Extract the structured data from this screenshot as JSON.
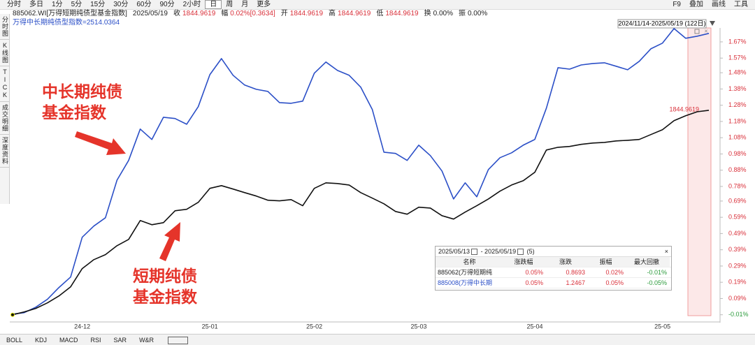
{
  "toolbar": {
    "periods": [
      "分时",
      "多日",
      "1分",
      "5分",
      "15分",
      "30分",
      "60分",
      "90分",
      "2小时",
      "日",
      "周",
      "月",
      "更多"
    ],
    "tools": [
      "F9",
      "叠加",
      "画线",
      "工具"
    ]
  },
  "sidebar": [
    "分时图",
    "K线图",
    "TICK",
    "成交明细",
    "深度资料"
  ],
  "info_bar": [
    {
      "text": "885062.WI[万得短期纯债型基金指数]"
    },
    {
      "text": "2025/05/19"
    },
    {
      "label": "收",
      "value": "1844.9619",
      "color": "#d9303a"
    },
    {
      "label": "幅",
      "value": "0.02%[0.3634]",
      "color": "#d9303a"
    },
    {
      "label": "开",
      "value": "1844.9619",
      "color": "#d9303a"
    },
    {
      "label": "高",
      "value": "1844.9619",
      "color": "#d9303a"
    },
    {
      "label": "低",
      "value": "1844.9619",
      "color": "#d9303a"
    },
    {
      "label": "换",
      "value": "0.00%",
      "color": "#222222"
    },
    {
      "label": "振",
      "value": "0.00%",
      "color": "#222222"
    }
  ],
  "chart_data": {
    "type": "line",
    "subtitle": "万得中长期纯债型指数=2514.0364",
    "range_label": "2024/11/14-2025/05/19 (122日)",
    "last_price_label": "1844.9619",
    "annotations": [
      [
        "中长期纯债",
        "基金指数"
      ],
      [
        "短期纯债",
        "基金指数"
      ]
    ],
    "categories": [
      null,
      null,
      null,
      null,
      null,
      null,
      "24-12",
      null,
      null,
      null,
      null,
      null,
      null,
      null,
      null,
      null,
      null,
      "25-01",
      null,
      null,
      null,
      null,
      null,
      null,
      null,
      null,
      "25-02",
      null,
      null,
      null,
      null,
      null,
      null,
      null,
      null,
      "25-03",
      null,
      null,
      null,
      null,
      null,
      null,
      null,
      null,
      null,
      "25-04",
      null,
      null,
      null,
      null,
      null,
      null,
      null,
      null,
      null,
      null,
      "25-05",
      null,
      null,
      null,
      null
    ],
    "series": [
      {
        "color": "#2b4fc7",
        "values": [
          -0.006,
          0.003,
          0.037,
          0.085,
          0.158,
          0.222,
          0.467,
          0.536,
          0.587,
          0.819,
          0.94,
          1.133,
          1.069,
          1.206,
          1.198,
          1.163,
          1.271,
          1.468,
          1.567,
          1.464,
          1.404,
          1.378,
          1.365,
          1.296,
          1.292,
          1.305,
          1.477,
          1.546,
          1.494,
          1.464,
          1.391,
          1.253,
          0.991,
          0.983,
          0.94,
          1.034,
          0.97,
          0.875,
          0.703,
          0.802,
          0.716,
          0.884,
          0.957,
          0.987,
          1.034,
          1.069,
          1.262,
          1.511,
          1.502,
          1.528,
          1.537,
          1.541,
          1.52,
          1.498,
          1.55,
          1.627,
          1.662,
          1.752,
          1.692,
          1.705,
          1.722
        ]
      },
      {
        "color": "#111111",
        "values": [
          -0.01,
          0.007,
          0.029,
          0.063,
          0.106,
          0.162,
          0.274,
          0.329,
          0.36,
          0.415,
          0.454,
          0.57,
          0.544,
          0.557,
          0.63,
          0.639,
          0.682,
          0.768,
          0.785,
          0.764,
          0.742,
          0.721,
          0.695,
          0.691,
          0.699,
          0.661,
          0.768,
          0.802,
          0.798,
          0.789,
          0.742,
          0.708,
          0.673,
          0.626,
          0.609,
          0.652,
          0.647,
          0.6,
          0.579,
          0.622,
          0.661,
          0.703,
          0.751,
          0.789,
          0.815,
          0.867,
          1.004,
          1.021,
          1.026,
          1.039,
          1.047,
          1.051,
          1.06,
          1.064,
          1.069,
          1.099,
          1.129,
          1.185,
          1.215,
          1.24,
          1.249
        ]
      }
    ],
    "ylim": [
      -0.05,
      1.76
    ],
    "yticks": [
      {
        "value": 1.67,
        "label": "1.67%"
      },
      {
        "value": 1.57,
        "label": "1.57%"
      },
      {
        "value": 1.48,
        "label": "1.48%"
      },
      {
        "value": 1.38,
        "label": "1.38%"
      },
      {
        "value": 1.28,
        "label": "1.28%"
      },
      {
        "value": 1.18,
        "label": "1.18%"
      },
      {
        "value": 1.08,
        "label": "1.08%"
      },
      {
        "value": 0.98,
        "label": "0.98%"
      },
      {
        "value": 0.88,
        "label": "0.88%"
      },
      {
        "value": 0.78,
        "label": "0.78%"
      },
      {
        "value": 0.69,
        "label": "0.69%"
      },
      {
        "value": 0.59,
        "label": "0.59%"
      },
      {
        "value": 0.49,
        "label": "0.49%"
      },
      {
        "value": 0.39,
        "label": "0.39%"
      },
      {
        "value": 0.29,
        "label": "0.29%"
      },
      {
        "value": 0.19,
        "label": "0.19%"
      },
      {
        "value": 0.09,
        "label": "0.09%"
      },
      {
        "value": -0.01,
        "label": "-0.01%"
      }
    ],
    "grid": false
  },
  "compare_table": {
    "start": "2025/05/13",
    "end": "- 2025/05/19",
    "count": "(5)",
    "columns": [
      "名称",
      "涨跌幅",
      "涨跌",
      "振幅",
      "最大回撤"
    ],
    "rows": [
      [
        "885062(万得短期纯",
        "0.05%",
        "0.8693",
        "0.02%",
        "-0.01%"
      ],
      [
        "885008(万得中长期",
        "0.05%",
        "1.2467",
        "0.05%",
        "-0.05%"
      ]
    ]
  },
  "indicator_tabs": [
    "BOLL",
    "KDJ",
    "MACD",
    "RSI",
    "SAR",
    "W&R"
  ]
}
